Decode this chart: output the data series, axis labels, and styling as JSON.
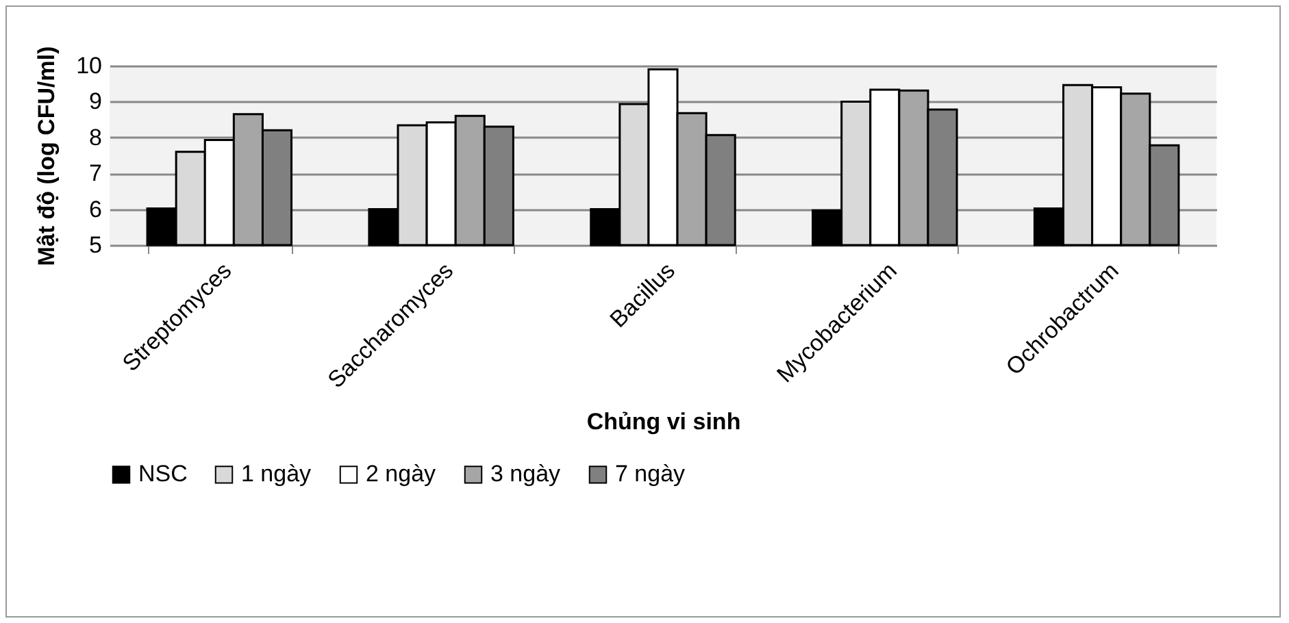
{
  "chart_data": {
    "type": "bar",
    "xlabel": "Chủng vi sinh",
    "ylabel": "Mật độ (log CFU/ml)",
    "categories": [
      "Streptomyces",
      "Saccharomyces",
      "Bacillus",
      "Mycobacterium",
      "Ochrobactrum"
    ],
    "series": [
      {
        "name": "NSC",
        "color": "#000000",
        "values": [
          6.02,
          6.0,
          6.0,
          5.97,
          6.02
        ]
      },
      {
        "name": "1 ngày",
        "color": "#d9d9d9",
        "values": [
          7.6,
          8.34,
          8.93,
          9.0,
          9.46
        ]
      },
      {
        "name": "2 ngày",
        "color": "#ffffff",
        "values": [
          7.93,
          8.42,
          9.9,
          9.33,
          9.4
        ]
      },
      {
        "name": "3 ngày",
        "color": "#a6a6a6",
        "values": [
          8.65,
          8.6,
          8.68,
          9.31,
          9.22
        ]
      },
      {
        "name": "7 ngày",
        "color": "#808080",
        "values": [
          8.2,
          8.3,
          8.07,
          8.78,
          7.78
        ]
      }
    ],
    "ylim": [
      5,
      10
    ],
    "yticks": [
      5,
      6,
      7,
      8,
      9,
      10
    ],
    "grid": "y",
    "legend": "bottom"
  }
}
